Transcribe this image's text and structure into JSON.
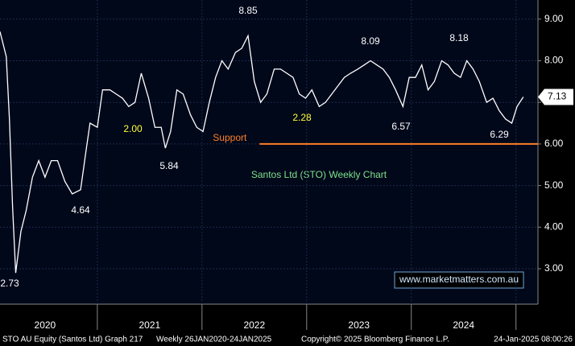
{
  "chart_data": {
    "type": "line",
    "title": "Santos Ltd (STO) Weekly Chart",
    "series": [
      {
        "name": "STO AU Equity",
        "color": "#ffffff",
        "x": [
          2020.07,
          2020.13,
          2020.16,
          2020.19,
          2020.22,
          2020.27,
          2020.32,
          2020.38,
          2020.44,
          2020.5,
          2020.56,
          2020.62,
          2020.69,
          2020.76,
          2020.84,
          2020.89,
          2020.93,
          2021.0,
          2021.05,
          2021.12,
          2021.18,
          2021.24,
          2021.3,
          2021.36,
          2021.42,
          2021.49,
          2021.55,
          2021.61,
          2021.65,
          2021.7,
          2021.76,
          2021.82,
          2021.89,
          2021.95,
          2022.01,
          2022.07,
          2022.13,
          2022.19,
          2022.25,
          2022.32,
          2022.38,
          2022.44,
          2022.5,
          2022.56,
          2022.62,
          2022.69,
          2022.75,
          2022.81,
          2022.87,
          2022.93,
          2022.99,
          2023.05,
          2023.12,
          2023.18,
          2023.24,
          2023.3,
          2023.36,
          2023.42,
          2023.49,
          2023.55,
          2023.61,
          2023.67,
          2023.73,
          2023.79,
          2023.85,
          2023.92,
          2023.98,
          2024.04,
          2024.1,
          2024.16,
          2024.22,
          2024.29,
          2024.35,
          2024.41,
          2024.47,
          2024.53,
          2024.59,
          2024.65,
          2024.72,
          2024.78,
          2024.84,
          2024.9,
          2024.96,
          2025.01,
          2025.07
        ],
        "values": [
          8.7,
          8.1,
          6.6,
          4.5,
          2.9,
          3.9,
          4.4,
          5.2,
          5.6,
          5.2,
          5.6,
          5.6,
          5.1,
          4.8,
          4.9,
          5.8,
          6.5,
          6.4,
          7.3,
          7.3,
          7.2,
          7.1,
          6.9,
          7.0,
          7.7,
          7.1,
          6.4,
          6.4,
          5.9,
          6.3,
          7.3,
          7.2,
          6.7,
          6.4,
          6.3,
          7.0,
          7.6,
          8.0,
          7.8,
          8.2,
          8.3,
          8.6,
          7.5,
          7.0,
          7.2,
          7.8,
          7.8,
          7.7,
          7.6,
          7.2,
          7.1,
          7.3,
          6.9,
          7.0,
          7.2,
          7.4,
          7.6,
          7.7,
          7.8,
          7.9,
          8.0,
          7.9,
          7.8,
          7.6,
          7.3,
          6.9,
          7.6,
          7.6,
          7.9,
          7.3,
          7.5,
          8.0,
          7.9,
          7.7,
          7.6,
          8.0,
          7.8,
          7.5,
          7.0,
          7.1,
          6.8,
          6.6,
          6.5,
          6.9,
          7.13
        ]
      }
    ],
    "xlim": [
      2020.07,
      2025.21
    ],
    "xticks": [
      {
        "value": 2020.5,
        "label": "2020"
      },
      {
        "value": 2021.5,
        "label": "2021"
      },
      {
        "value": 2022.5,
        "label": "2022"
      },
      {
        "value": 2023.5,
        "label": "2023"
      },
      {
        "value": 2024.5,
        "label": "2024"
      }
    ],
    "x_dividers": [
      2021,
      2022,
      2023,
      2024,
      2025
    ],
    "ylim": [
      2.15,
      9.46
    ],
    "yticks": [
      {
        "value": 3,
        "label": "3.00"
      },
      {
        "value": 4,
        "label": "4.00"
      },
      {
        "value": 5,
        "label": "5.00"
      },
      {
        "value": 6,
        "label": "6.00"
      },
      {
        "value": 7,
        "label": "7.00"
      },
      {
        "value": 8,
        "label": "8.00"
      },
      {
        "value": 9,
        "label": "9.00"
      }
    ],
    "grid": true,
    "last_price": {
      "value": 7.13,
      "label": "7.13"
    },
    "support": {
      "label": "Support",
      "value": 6.0,
      "x_start": 2022.55,
      "color": "#ff7f27"
    },
    "annotations": [
      "8.85",
      "8.09",
      "8.18",
      "2.73",
      "4.64",
      "5.84",
      "6.57",
      "6.29",
      "2.00",
      "2.28"
    ],
    "website": "www.marketmatters.com.au",
    "footer": [
      "STO AU Equity (Santos Ltd) Graph 217",
      "Weekly 26JAN2020-24JAN2025",
      "Copyright© 2025 Bloomberg Finance L.P.",
      "24-Jan-2025 08:00:26"
    ]
  }
}
